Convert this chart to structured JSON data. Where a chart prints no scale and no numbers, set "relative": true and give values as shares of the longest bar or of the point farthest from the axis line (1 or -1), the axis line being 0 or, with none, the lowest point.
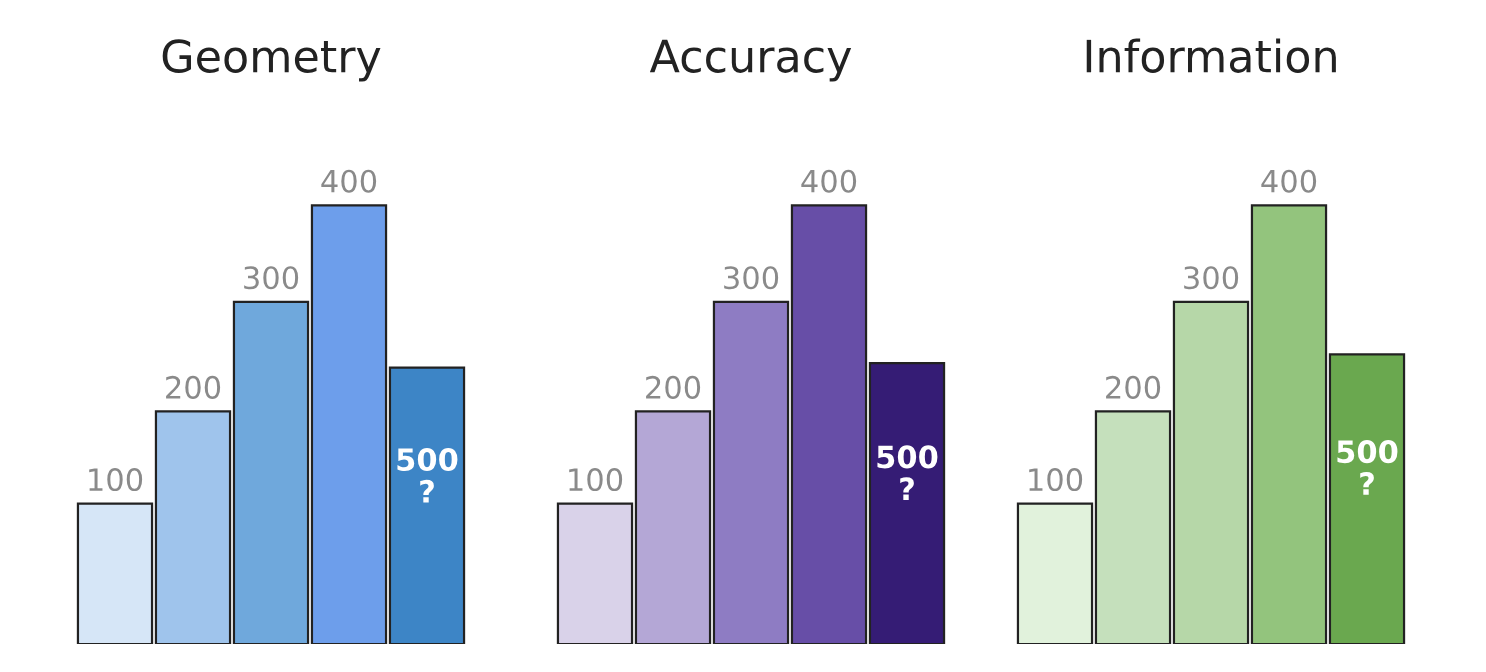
{
  "chart_data": [
    {
      "type": "bar",
      "title": "Geometry",
      "relative": true,
      "categories": [
        null,
        null,
        null,
        null,
        null
      ],
      "values": [
        0.32,
        0.53,
        0.78,
        1,
        0.63
      ],
      "colors": [
        "#d6e6f7",
        "#9fc4ec",
        "#6fa8dc",
        "#6d9eeb",
        "#3d85c6"
      ],
      "annotations": [
        {
          "text": "100",
          "y": 0.32
        },
        {
          "text": "200",
          "y": 0.53
        },
        {
          "text": "300",
          "y": 0.78
        },
        {
          "text": "400",
          "y": 1
        },
        {
          "text": "500\n?",
          "y": 0.63
        }
      ]
    },
    {
      "type": "bar",
      "title": "Accuracy",
      "relative": true,
      "categories": [
        null,
        null,
        null,
        null,
        null
      ],
      "values": [
        0.32,
        0.53,
        0.78,
        1,
        0.64
      ],
      "colors": [
        "#d9d2e9",
        "#b4a7d6",
        "#8e7cc3",
        "#674ea7",
        "#351c75"
      ],
      "annotations": [
        {
          "text": "100",
          "y": 0.32
        },
        {
          "text": "200",
          "y": 0.53
        },
        {
          "text": "300",
          "y": 0.78
        },
        {
          "text": "400",
          "y": 1
        },
        {
          "text": "500\n?",
          "y": 0.64
        }
      ]
    },
    {
      "type": "bar",
      "title": "Information",
      "relative": true,
      "categories": [
        null,
        null,
        null,
        null,
        null
      ],
      "values": [
        0.32,
        0.53,
        0.78,
        1,
        0.66
      ],
      "colors": [
        "#e1f2dc",
        "#c5e0bc",
        "#b6d7a8",
        "#93c47d",
        "#6aa84f"
      ],
      "annotations": [
        {
          "text": "100",
          "y": 0.32
        },
        {
          "text": "200",
          "y": 0.53
        },
        {
          "text": "300",
          "y": 0.78
        },
        {
          "text": "400",
          "y": 1
        },
        {
          "text": "500\n?",
          "y": 0.66
        }
      ]
    }
  ]
}
